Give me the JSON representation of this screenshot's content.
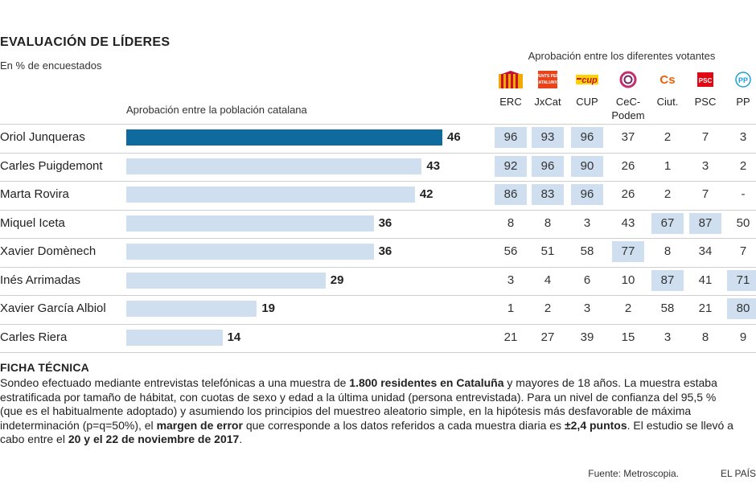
{
  "header": {
    "title": "EVALUACIÓN DE LÍDERES",
    "subtitle": "En % de encuestados",
    "bar_title": "Aprobación entre la población catalana",
    "votantes_title": "Aprobación entre los diferentes votantes"
  },
  "chart_data": {
    "type": "bar",
    "title": "EVALUACIÓN DE LÍDERES",
    "subtitle": "En % de encuestados",
    "xlabel": "Aprobación entre la población catalana",
    "categories": [
      "Oriol Junqueras",
      "Carles Puigdemont",
      "Marta Rovira",
      "Miquel Iceta",
      "Xavier Domènech",
      "Inés Arrimadas",
      "Xavier García Albiol",
      "Carles Riera"
    ],
    "values": [
      46,
      43,
      42,
      36,
      36,
      29,
      19,
      14
    ],
    "highlight_color": "#0f6a9e",
    "bar_color": "#cfdff0",
    "xlim": [
      0,
      60
    ],
    "table": {
      "title": "Aprobación entre los diferentes votantes",
      "columns": [
        "ERC",
        "JxCat",
        "CUP",
        "CeC-Podem",
        "Ciut.",
        "PSC",
        "PP"
      ],
      "column_lines": [
        [
          "ERC"
        ],
        [
          "JxCat"
        ],
        [
          "CUP"
        ],
        [
          "CeC-",
          "Podem"
        ],
        [
          "Ciut."
        ],
        [
          "PSC"
        ],
        [
          "PP"
        ]
      ],
      "rows": [
        [
          "96",
          "93",
          "96",
          "37",
          "2",
          "7",
          "3"
        ],
        [
          "92",
          "96",
          "90",
          "26",
          "1",
          "3",
          "2"
        ],
        [
          "86",
          "83",
          "96",
          "26",
          "2",
          "7",
          "-"
        ],
        [
          "8",
          "8",
          "3",
          "43",
          "67",
          "87",
          "50"
        ],
        [
          "56",
          "51",
          "58",
          "77",
          "8",
          "34",
          "7"
        ],
        [
          "3",
          "4",
          "6",
          "10",
          "87",
          "41",
          "71"
        ],
        [
          "1",
          "2",
          "3",
          "2",
          "58",
          "21",
          "80"
        ],
        [
          "21",
          "27",
          "39",
          "15",
          "3",
          "8",
          "9"
        ]
      ],
      "highlighted": [
        [
          0,
          1,
          2
        ],
        [
          0,
          1,
          2
        ],
        [
          0,
          1,
          2
        ],
        [
          4,
          5
        ],
        [
          3
        ],
        [
          4,
          6
        ],
        [
          6
        ],
        []
      ]
    }
  },
  "parties": [
    {
      "name": "ERC",
      "icon": "erc-logo-icon",
      "color": "#f2a900",
      "logo_text": ""
    },
    {
      "name": "JxCat",
      "icon": "jxcat-logo-icon",
      "color": "#e8431a",
      "logo_text": "JUNTS PER CATALUNYA"
    },
    {
      "name": "CUP",
      "icon": "cup-logo-icon",
      "color": "#ffd400",
      "logo_text": "cup"
    },
    {
      "name": "CeC-Podem",
      "icon": "cec-podem-logo-icon",
      "color": "#c4306a",
      "logo_text": ""
    },
    {
      "name": "Ciut.",
      "icon": "ciutadans-logo-icon",
      "color": "#eb6109",
      "logo_text": "Cs"
    },
    {
      "name": "PSC",
      "icon": "psc-logo-icon",
      "color": "#e30613",
      "logo_text": "PSC"
    },
    {
      "name": "PP",
      "icon": "pp-logo-icon",
      "color": "#1e9fd8",
      "logo_text": "PP"
    }
  ],
  "ficha": {
    "title": "FICHA TÉCNICA",
    "t1": "Sondeo efectuado mediante entrevistas telefónicas a una muestra de ",
    "b1": "1.800 residentes en Cataluña",
    "t2": " y mayores de 18 años. La muestra estaba estratificada por tamaño de hábitat, con cuotas de sexo y edad a la última unidad (persona entrevistada). Para un nivel de confianza del 95,5 % (que es el habitualmente adoptado) y asumiendo los principios del muestreo aleatorio simple, en la hipótesis más desfavorable de máxima indeterminación (p=q=50%), el ",
    "b2": "margen de error",
    "t3": " que corresponde a los datos referidos a cada muestra diaria es ",
    "b3": "±2,4 puntos",
    "t4": ". El estudio se llevó a cabo entre el ",
    "b4": "20 y el 22 de noviembre de 2017",
    "t5": "."
  },
  "footer": {
    "source": "Fuente: Metroscopia.",
    "brand": "EL PAÍS"
  }
}
